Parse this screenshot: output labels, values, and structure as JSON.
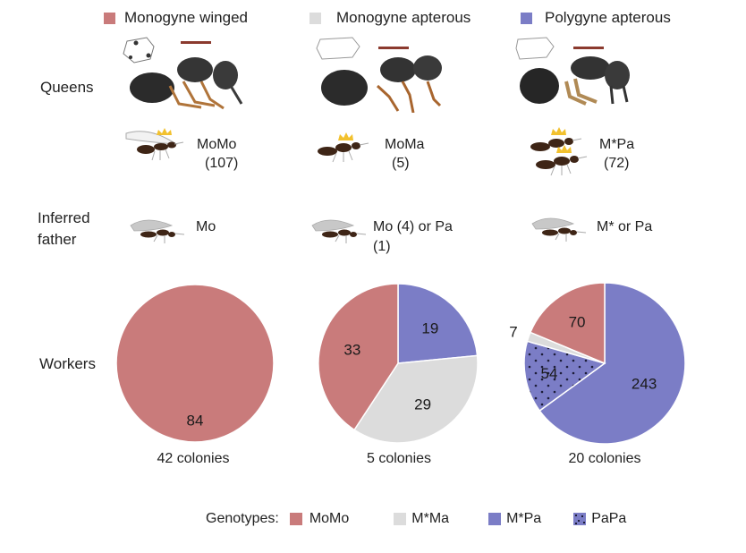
{
  "legend_top": [
    {
      "label": "Monogyne winged",
      "color": "#c97b7b"
    },
    {
      "label": "Monogyne apterous",
      "color": "#dcdcdc"
    },
    {
      "label": "Polygyne apterous",
      "color": "#7b7dc6"
    }
  ],
  "row_labels": {
    "queens": "Queens",
    "father_line1": "Inferred",
    "father_line2": "father",
    "workers": "Workers"
  },
  "columns": [
    {
      "queen_type": "MoMo",
      "queen_count": "(107)",
      "father_line1": "Mo",
      "father_line2": "",
      "colonies": "42 colonies"
    },
    {
      "queen_type": "MoMa",
      "queen_count": "(5)",
      "father_line1": "Mo (4) or Pa",
      "father_line2": "(1)",
      "colonies": "5 colonies"
    },
    {
      "queen_type": "M*Pa",
      "queen_count": "(72)",
      "father_line1": "M* or Pa",
      "father_line2": "",
      "colonies": "20 colonies"
    }
  ],
  "genotype_legend": {
    "title": "Genotypes:",
    "items": [
      {
        "label": "MoMo",
        "color": "#c97b7b",
        "pattern": "solid"
      },
      {
        "label": "M*Ma",
        "color": "#dcdcdc",
        "pattern": "solid"
      },
      {
        "label": "M*Pa",
        "color": "#7b7dc6",
        "pattern": "solid"
      },
      {
        "label": "PaPa",
        "color": "#7b7dc6",
        "pattern": "dotted"
      }
    ]
  },
  "chart_data": [
    {
      "type": "pie",
      "title": "Monogyne winged",
      "caption": "42 colonies",
      "slices": [
        {
          "label": "MoMo",
          "value": 84,
          "color": "#c97b7b",
          "pattern": "solid"
        }
      ]
    },
    {
      "type": "pie",
      "title": "Monogyne apterous",
      "caption": "5 colonies",
      "slices": [
        {
          "label": "M*Pa",
          "value": 19,
          "color": "#7b7dc6",
          "pattern": "solid"
        },
        {
          "label": "M*Ma",
          "value": 29,
          "color": "#dcdcdc",
          "pattern": "solid"
        },
        {
          "label": "MoMo",
          "value": 33,
          "color": "#c97b7b",
          "pattern": "solid"
        }
      ]
    },
    {
      "type": "pie",
      "title": "Polygyne apterous",
      "caption": "20 colonies",
      "slices": [
        {
          "label": "M*Pa",
          "value": 243,
          "color": "#7b7dc6",
          "pattern": "solid"
        },
        {
          "label": "PaPa",
          "value": 54,
          "color": "#7b7dc6",
          "pattern": "dotted"
        },
        {
          "label": "M*Ma",
          "value": 7,
          "color": "#dcdcdc",
          "pattern": "solid"
        },
        {
          "label": "MoMo",
          "value": 70,
          "color": "#c97b7b",
          "pattern": "solid"
        }
      ]
    }
  ]
}
